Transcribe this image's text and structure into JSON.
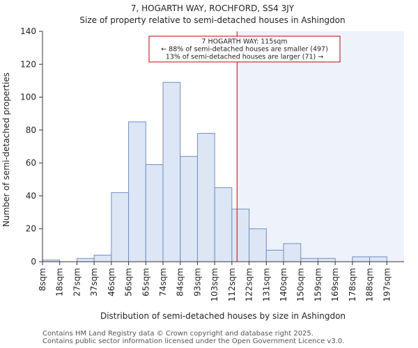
{
  "chart_data": {
    "type": "bar",
    "title": "7, HOGARTH WAY, ROCHFORD, SS4 3JY",
    "subtitle": "Size of property relative to semi-detached houses in Ashingdon",
    "xlabel": "Distribution of semi-detached houses by size in Ashingdon",
    "ylabel": "Number of semi-detached properties",
    "categories": [
      "8sqm",
      "18sqm",
      "27sqm",
      "37sqm",
      "46sqm",
      "56sqm",
      "65sqm",
      "74sqm",
      "84sqm",
      "93sqm",
      "103sqm",
      "112sqm",
      "122sqm",
      "131sqm",
      "140sqm",
      "150sqm",
      "159sqm",
      "169sqm",
      "178sqm",
      "188sqm",
      "197sqm"
    ],
    "values": [
      1,
      0,
      2,
      4,
      42,
      85,
      59,
      109,
      64,
      78,
      45,
      32,
      20,
      7,
      11,
      2,
      2,
      0,
      3,
      3,
      0
    ],
    "ylim": [
      0,
      140
    ],
    "yticks": [
      0,
      20,
      40,
      60,
      80,
      100,
      120,
      140
    ],
    "grid": false,
    "property_marker": {
      "value_sqm": 115,
      "bin_position": 11.3,
      "color": "#cc0000",
      "annotation": [
        "7 HOGARTH WAY: 115sqm",
        "← 88% of semi-detached houses are smaller (497)",
        "13% of semi-detached houses are larger (71) →"
      ]
    },
    "colors": {
      "bar_fill": "#dce6f5",
      "bar_stroke": "#6f8fc3",
      "highlight_region": "#eef2fb"
    }
  },
  "footer": {
    "line1": "Contains HM Land Registry data © Crown copyright and database right 2025.",
    "line2": "Contains public sector information licensed under the Open Government Licence v3.0."
  }
}
